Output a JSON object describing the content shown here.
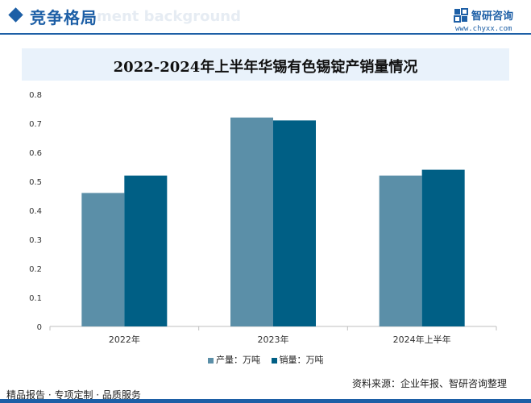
{
  "header": {
    "section_title": "竞争格局",
    "ghost_text": "ment background",
    "logo_name": "智研咨询",
    "logo_url": "www.chyxx.com"
  },
  "chart_data": {
    "type": "bar",
    "title": "2022-2024年上半年华锡有色锡锭产销量情况",
    "categories": [
      "2022年",
      "2023年",
      "2024年上半年"
    ],
    "series": [
      {
        "name": "产量：万吨",
        "values": [
          0.46,
          0.72,
          0.52
        ],
        "color": "#5b8fa8"
      },
      {
        "name": "销量：万吨",
        "values": [
          0.52,
          0.71,
          0.54
        ],
        "color": "#005f85"
      }
    ],
    "y_ticks": [
      "0",
      "0.1",
      "0.2",
      "0.3",
      "0.4",
      "0.5",
      "0.6",
      "0.7",
      "0.8"
    ],
    "ylim": [
      0,
      0.8
    ],
    "grid": false,
    "legend": "bottom"
  },
  "footer": {
    "left": "精品报告 · 专项定制 · 品质服务",
    "right": "资料来源：企业年报、智研咨询整理"
  }
}
